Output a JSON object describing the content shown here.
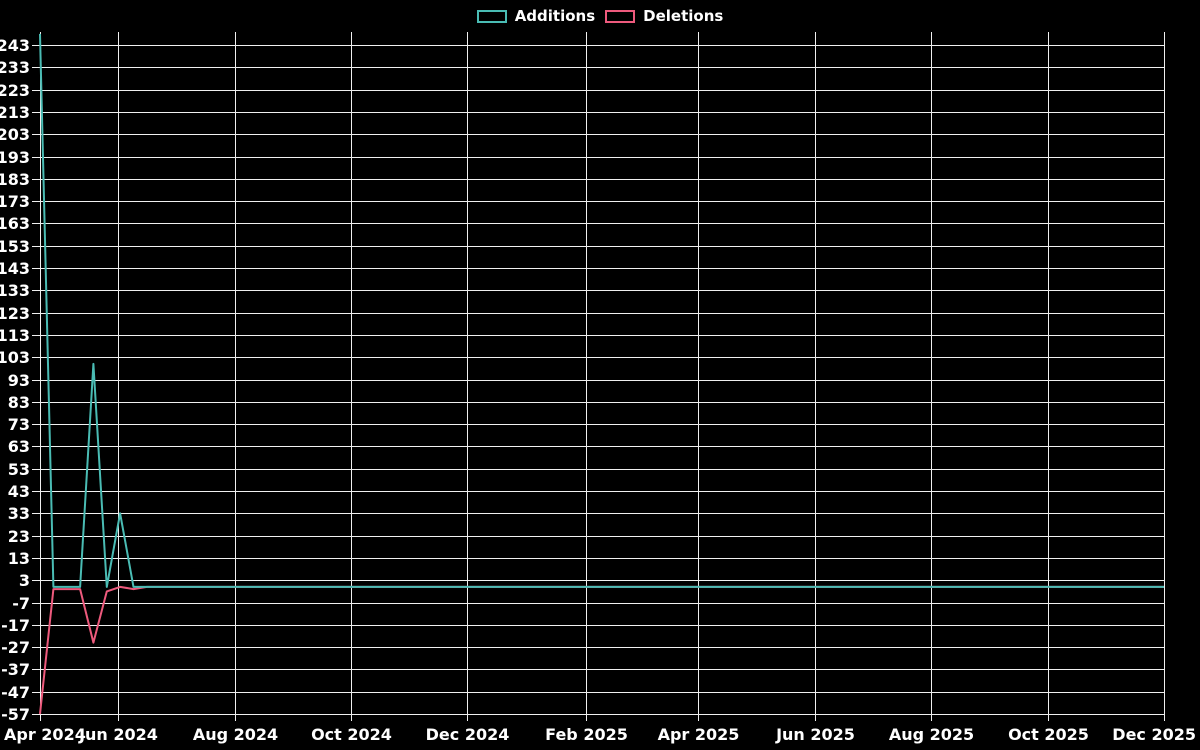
{
  "colors": {
    "background": "#000000",
    "grid": "#f0f0f0",
    "text": "#ffffff"
  },
  "chart_data": {
    "type": "line",
    "title": "",
    "xlabel": "",
    "ylabel": "",
    "grid": true,
    "legend_position": "top",
    "x_domain": [
      "2024-04-21",
      "2025-12-01"
    ],
    "x_ticks": [
      {
        "date": "2024-04-21",
        "label": "Apr 2024"
      },
      {
        "date": "2024-06-01",
        "label": "Jun 2024"
      },
      {
        "date": "2024-08-01",
        "label": "Aug 2024"
      },
      {
        "date": "2024-10-01",
        "label": "Oct 2024"
      },
      {
        "date": "2024-12-01",
        "label": "Dec 2024"
      },
      {
        "date": "2025-02-01",
        "label": "Feb 2025"
      },
      {
        "date": "2025-04-01",
        "label": "Apr 2025"
      },
      {
        "date": "2025-06-01",
        "label": "Jun 2025"
      },
      {
        "date": "2025-08-01",
        "label": "Aug 2025"
      },
      {
        "date": "2025-10-01",
        "label": "Oct 2025"
      },
      {
        "date": "2025-12-01",
        "label": "Dec 2025"
      }
    ],
    "y_axis": {
      "min": -57,
      "max": 243,
      "step": 10,
      "tick_labels": [
        243,
        233,
        223,
        213,
        203,
        193,
        183,
        173,
        163,
        153,
        143,
        133,
        123,
        113,
        103,
        93,
        83,
        73,
        63,
        53,
        43,
        33,
        23,
        13,
        3,
        -7,
        -17,
        -27,
        -37,
        -47,
        -57
      ]
    },
    "series": [
      {
        "name": "Additions",
        "color": "#4abcb4",
        "points": [
          [
            "2024-04-21",
            248
          ],
          [
            "2024-04-28",
            0
          ],
          [
            "2024-05-05",
            0
          ],
          [
            "2024-05-12",
            0
          ],
          [
            "2024-05-19",
            100
          ],
          [
            "2024-05-26",
            0
          ],
          [
            "2024-06-02",
            33
          ],
          [
            "2024-06-09",
            0
          ],
          [
            "2025-12-01",
            0
          ]
        ]
      },
      {
        "name": "Deletions",
        "color": "#ee5a7d",
        "points": [
          [
            "2024-04-21",
            -57
          ],
          [
            "2024-04-28",
            -1
          ],
          [
            "2024-05-05",
            -1
          ],
          [
            "2024-05-12",
            -1
          ],
          [
            "2024-05-19",
            -25
          ],
          [
            "2024-05-26",
            -2
          ],
          [
            "2024-06-02",
            0
          ],
          [
            "2024-06-09",
            -1
          ],
          [
            "2024-06-16",
            0
          ],
          [
            "2025-12-01",
            0
          ]
        ]
      }
    ]
  }
}
